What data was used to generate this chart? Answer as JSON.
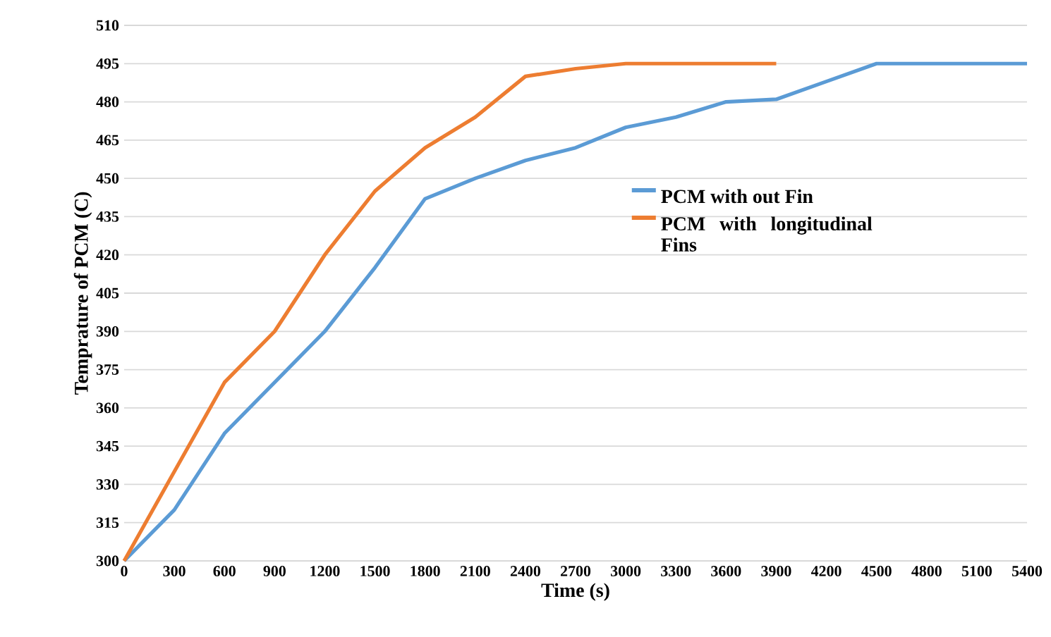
{
  "chart_data": {
    "type": "line",
    "xlabel": "Time (s)",
    "ylabel": "Temprature of PCM (C)",
    "xlim": [
      0,
      5400
    ],
    "xticks": [
      0,
      300,
      600,
      900,
      1200,
      1500,
      1800,
      2100,
      2400,
      2700,
      3000,
      3300,
      3600,
      3900,
      4200,
      4500,
      4800,
      5100,
      5400
    ],
    "ylim": [
      300,
      510
    ],
    "yticks": [
      300,
      315,
      330,
      345,
      360,
      375,
      390,
      405,
      420,
      435,
      450,
      465,
      480,
      495,
      510
    ],
    "grid": "y",
    "legend": "right",
    "marker": "none",
    "line_style": "solid",
    "series": [
      {
        "name": "PCM with out Fin",
        "color": "#5b9bd5",
        "x": [
          0,
          300,
          600,
          900,
          1200,
          1500,
          1800,
          2100,
          2400,
          2700,
          3000,
          3300,
          3600,
          3900,
          4200,
          4500,
          4800,
          5100,
          5400
        ],
        "values": [
          300,
          320,
          350,
          370,
          390,
          415,
          442,
          450,
          457,
          462,
          470,
          474,
          480,
          481,
          488,
          495,
          495,
          495,
          495
        ]
      },
      {
        "name": "PCM with longitudinal Fins",
        "color": "#ed7d31",
        "x": [
          0,
          300,
          600,
          900,
          1200,
          1500,
          1800,
          2100,
          2400,
          2700,
          3000,
          3300,
          3600,
          3900
        ],
        "values": [
          300,
          335,
          370,
          390,
          420,
          445,
          462,
          474,
          490,
          493,
          495,
          495,
          495,
          495
        ]
      }
    ]
  }
}
